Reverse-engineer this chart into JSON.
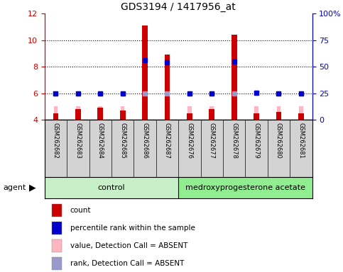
{
  "title": "GDS3194 / 1417956_at",
  "samples": [
    "GSM262682",
    "GSM262683",
    "GSM262684",
    "GSM262685",
    "GSM262686",
    "GSM262687",
    "GSM262676",
    "GSM262677",
    "GSM262678",
    "GSM262679",
    "GSM262680",
    "GSM262681"
  ],
  "count_values": [
    4.5,
    4.8,
    4.9,
    4.7,
    11.1,
    8.9,
    4.5,
    4.8,
    10.4,
    4.5,
    4.6,
    4.5
  ],
  "rank_values": [
    5.98,
    5.98,
    5.98,
    5.98,
    8.5,
    8.3,
    5.98,
    5.98,
    8.4,
    6.05,
    5.98,
    5.98
  ],
  "absent_value": [
    5.0,
    5.0,
    5.0,
    5.0,
    5.0,
    5.0,
    5.0,
    5.0,
    5.0,
    5.0,
    5.0,
    5.0
  ],
  "absent_rank": [
    5.98,
    5.98,
    5.98,
    5.98,
    5.98,
    5.98,
    5.98,
    5.98,
    5.98,
    6.05,
    5.98,
    5.98
  ],
  "ylim_left": [
    4,
    12
  ],
  "ylim_right": [
    0,
    100
  ],
  "yticks_left": [
    4,
    6,
    8,
    10,
    12
  ],
  "yticks_right": [
    0,
    25,
    50,
    75,
    100
  ],
  "ytick_labels_right": [
    "0",
    "25",
    "50",
    "75",
    "100%"
  ],
  "count_color": "#CC0000",
  "rank_color": "#0000CC",
  "absent_val_color": "#FFB6C1",
  "absent_rank_color": "#9999CC",
  "left_axis_color": "#CC0000",
  "right_axis_color": "#0000CC",
  "control_color": "#C8F0C8",
  "treatment_color": "#90EE90",
  "group_names": [
    "control",
    "medroxyprogesterone acetate"
  ],
  "group_split": 5.5
}
